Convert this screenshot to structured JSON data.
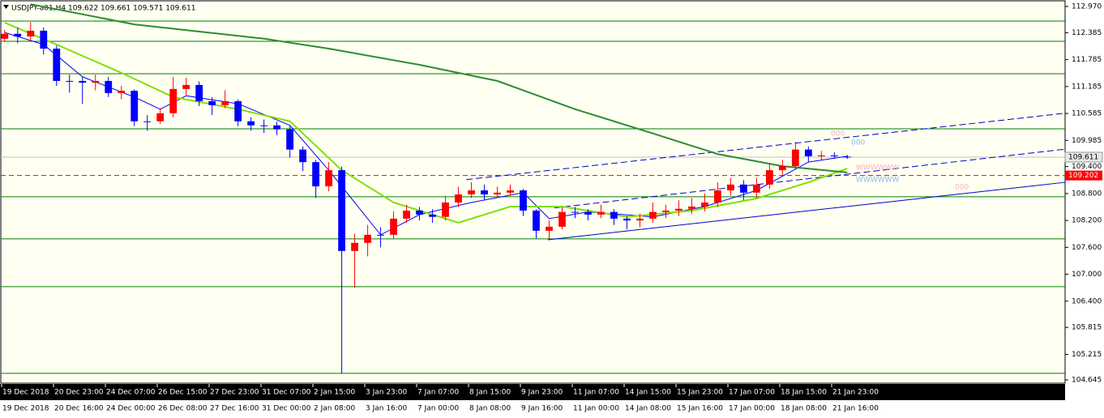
{
  "chart_data": {
    "type": "candlestick",
    "title": "USDJPY-a01,H4  109.622 109.661 109.571 109.611",
    "up_color": "#ff0000",
    "down_color": "#0000ff",
    "open": [
      112.25,
      112.36,
      112.3,
      112.43,
      112.03,
      111.31,
      111.31,
      111.27,
      111.31,
      111.04,
      111.09,
      110.41,
      110.41,
      110.59,
      111.13,
      111.22,
      110.86,
      110.77,
      110.86,
      110.41,
      110.32,
      110.32,
      110.23,
      109.78,
      109.5,
      108.96,
      109.32,
      107.52,
      107.7,
      107.88,
      107.88,
      108.24,
      108.42,
      108.33,
      108.28,
      108.6,
      108.78,
      108.87,
      108.78,
      108.82,
      108.87,
      108.42,
      107.97,
      108.06,
      108.39,
      108.39,
      108.33,
      108.39,
      108.24,
      108.2,
      108.24,
      108.39,
      108.42,
      108.46,
      108.51,
      108.6,
      108.87,
      109.0,
      108.82,
      109.0,
      109.32,
      109.41,
      109.78,
      109.63,
      109.65,
      109.622
    ],
    "high": [
      112.45,
      112.5,
      112.62,
      112.5,
      112.1,
      111.45,
      111.4,
      111.45,
      111.4,
      111.2,
      111.12,
      110.55,
      110.7,
      111.4,
      111.38,
      111.3,
      110.95,
      111.1,
      110.9,
      110.5,
      110.45,
      110.4,
      110.3,
      109.85,
      109.55,
      109.5,
      109.4,
      107.9,
      108.1,
      108.05,
      108.4,
      108.55,
      108.5,
      108.45,
      108.75,
      108.95,
      109.05,
      109.0,
      108.95,
      109.0,
      108.9,
      108.45,
      108.2,
      108.5,
      108.5,
      108.45,
      108.55,
      108.45,
      108.3,
      108.35,
      108.6,
      108.55,
      108.65,
      108.7,
      108.8,
      109.05,
      109.15,
      109.1,
      109.15,
      109.45,
      109.55,
      109.95,
      109.85,
      109.75,
      109.72,
      109.661
    ],
    "low": [
      112.18,
      112.15,
      112.2,
      111.9,
      111.2,
      111.05,
      110.8,
      111.1,
      110.95,
      110.9,
      110.3,
      110.2,
      110.35,
      110.5,
      111.0,
      110.75,
      110.55,
      110.7,
      110.3,
      110.2,
      110.15,
      110.1,
      109.6,
      109.3,
      108.7,
      108.85,
      104.79,
      106.7,
      107.4,
      107.6,
      107.8,
      108.15,
      108.2,
      108.15,
      108.2,
      108.5,
      108.7,
      108.65,
      108.7,
      108.75,
      108.3,
      107.8,
      107.78,
      108.0,
      108.25,
      108.2,
      108.25,
      108.1,
      108.0,
      108.05,
      108.15,
      108.25,
      108.3,
      108.35,
      108.4,
      108.5,
      108.75,
      108.65,
      108.7,
      108.9,
      109.2,
      109.35,
      109.5,
      109.55,
      109.58,
      109.571
    ],
    "close": [
      112.36,
      112.3,
      112.43,
      112.03,
      111.31,
      111.31,
      111.27,
      111.31,
      111.04,
      111.09,
      110.41,
      110.41,
      110.59,
      111.13,
      111.22,
      110.86,
      110.77,
      110.86,
      110.41,
      110.32,
      110.32,
      110.23,
      109.78,
      109.5,
      108.96,
      109.32,
      107.52,
      107.7,
      107.88,
      107.88,
      108.24,
      108.42,
      108.33,
      108.28,
      108.6,
      108.78,
      108.87,
      108.78,
      108.82,
      108.87,
      108.42,
      107.97,
      108.06,
      108.39,
      108.39,
      108.33,
      108.39,
      108.24,
      108.2,
      108.24,
      108.39,
      108.42,
      108.46,
      108.51,
      108.6,
      108.87,
      109.0,
      108.82,
      109.0,
      109.32,
      109.41,
      109.78,
      109.63,
      109.65,
      109.65,
      109.611
    ],
    "series": [
      {
        "color": "#0000ff",
        "x": [
          0,
          3,
          6,
          10,
          12,
          14,
          18,
          22,
          25,
          27,
          29,
          32,
          36,
          40,
          42,
          45,
          50,
          54,
          58,
          62,
          65
        ],
        "values": [
          112.39,
          112.12,
          111.4,
          110.95,
          110.68,
          110.98,
          110.8,
          110.32,
          109.32,
          108.6,
          107.88,
          108.33,
          108.6,
          108.82,
          108.24,
          108.39,
          108.28,
          108.51,
          108.87,
          109.5,
          109.63
        ]
      },
      {
        "color": "#7fe000",
        "x": [
          0,
          4,
          9,
          13,
          18,
          22,
          26,
          30,
          35,
          39,
          43,
          48,
          53,
          58,
          62,
          65
        ],
        "values": [
          112.61,
          112.12,
          111.49,
          110.95,
          110.68,
          110.41,
          109.32,
          108.6,
          108.15,
          108.51,
          108.51,
          108.28,
          108.42,
          108.69,
          109.05,
          109.36
        ]
      },
      {
        "color": "#2e8b2e",
        "x": [
          2,
          10,
          20,
          25,
          32,
          38,
          44,
          50,
          55,
          60,
          65
        ],
        "values": [
          113.02,
          112.57,
          112.25,
          112.03,
          111.67,
          111.31,
          110.68,
          110.14,
          109.68,
          109.41,
          109.27
        ]
      }
    ],
    "levels": [
      112.645,
      112.193,
      111.471,
      110.244,
      108.728,
      107.789,
      106.724,
      104.793
    ],
    "level_color": "#008000",
    "trendlines": [
      [
        35.6,
        109.11,
        81.8,
        110.59,
        "dash"
      ],
      [
        42.4,
        108.48,
        81.8,
        109.79,
        "dash"
      ],
      [
        41.9,
        107.77,
        81.8,
        109.05,
        "solid"
      ]
    ],
    "trend_color": "#0000cd",
    "last_price": 109.611,
    "order_line": 109.202,
    "order_color": "#ff0000",
    "annotations": [
      {
        "text": "000",
        "color": "#ffb0b8"
      },
      {
        "text": "000",
        "color": "#87bce8"
      },
      {
        "text": "WWWWWW",
        "color": "#ffb0b8"
      },
      {
        "text": "WWWWWW",
        "color": "#87bce8"
      },
      {
        "text": "000",
        "color": "#ffb0b8"
      }
    ],
    "xlim": [
      -0.3,
      81.8
    ],
    "ylim": [
      104.591,
      113.114
    ],
    "yticks": [
      {
        "value": 112.97,
        "label": "112.970"
      },
      112.385,
      111.785,
      111.185,
      110.585,
      109.985,
      {
        "value": 109.4,
        "label": "109.400"
      },
      {
        "value": 108.8,
        "label": "108.800"
      },
      {
        "value": 108.2,
        "label": "108.200"
      },
      {
        "value": 107.6,
        "label": "107.600"
      },
      {
        "value": 107,
        "label": "107.000"
      },
      {
        "value": 106.4,
        "label": "106.400"
      },
      105.815,
      105.215,
      104.645
    ],
    "time_labels_top": [
      "19 Dec 2018",
      "20 Dec 23:00",
      "24 Dec 07:00",
      "26 Dec 15:00",
      "27 Dec 23:00",
      "31 Dec 07:00",
      "2 Jan 15:00",
      "3 Jan 23:00",
      "7 Jan 07:00",
      "8 Jan 15:00",
      "9 Jan 23:00",
      "11 Jan 07:00",
      "14 Jan 15:00",
      "15 Jan 23:00",
      "17 Jan 07:00",
      "18 Jan 15:00",
      "21 Jan 23:00"
    ],
    "time_labels_bottom": [
      "19 Dec 2018",
      "20 Dec 16:00",
      "24 Dec 00:00",
      "26 Dec 08:00",
      "27 Dec 16:00",
      "31 Dec 00:00",
      "2 Jan 08:00",
      "3 Jan 16:00",
      "7 Jan 00:00",
      "8 Jan 08:00",
      "9 Jan 16:00",
      "11 Jan 00:00",
      "14 Jan 08:00",
      "15 Jan 16:00",
      "17 Jan 00:00",
      "18 Jan 08:00",
      "21 Jan 16:00"
    ]
  }
}
